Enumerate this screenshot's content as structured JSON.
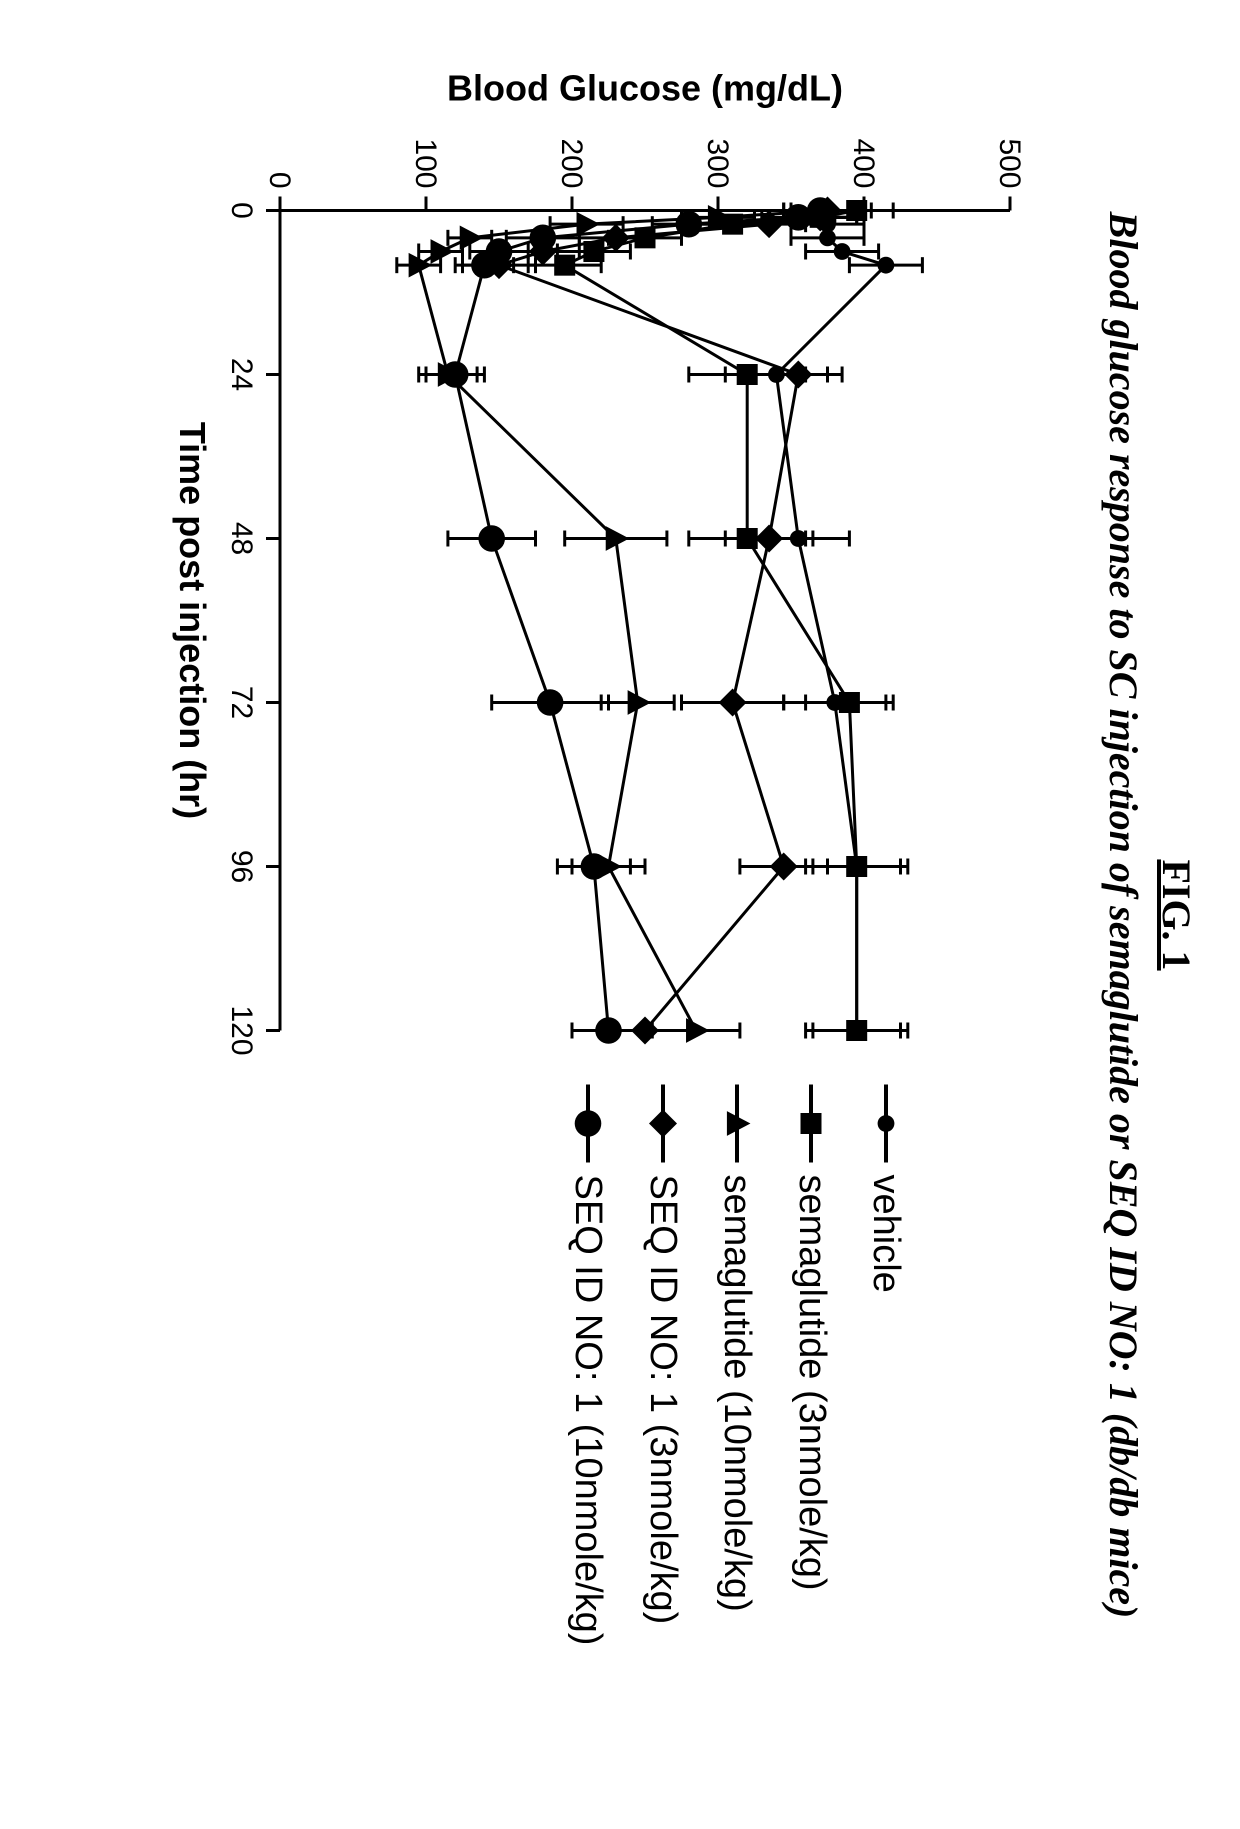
{
  "figure": {
    "label": "FIG. 1",
    "subtitle": "Blood glucose response to SC injection of semaglutide or SEQ ID NO: 1 (db/db mice)"
  },
  "chart": {
    "type": "line",
    "background_color": "#ffffff",
    "axis_color": "#000000",
    "axis_line_width": 3,
    "tick_font_size": 30,
    "label_font_size": 36,
    "xlabel": "Time post injection (hr)",
    "ylabel": "Blood Glucose (mg/dL)",
    "xlim": [
      0,
      120
    ],
    "ylim": [
      0,
      500
    ],
    "xticks": [
      0,
      24,
      48,
      72,
      96,
      120
    ],
    "yticks": [
      0,
      100,
      200,
      300,
      400,
      500
    ],
    "line_color": "#000000",
    "line_width": 3,
    "error_cap_width": 16,
    "marker_size": 14,
    "series": [
      {
        "id": "vehicle",
        "label": "vehicle",
        "marker": "circle_small_solid",
        "x": [
          0,
          1,
          2,
          4,
          6,
          8,
          24,
          48,
          72,
          96,
          120
        ],
        "y": [
          375,
          375,
          375,
          375,
          385,
          415,
          340,
          355,
          380,
          395,
          395
        ],
        "err": [
          30,
          25,
          25,
          25,
          25,
          25,
          35,
          35,
          35,
          35,
          35
        ]
      },
      {
        "id": "sema3",
        "label": "semaglutide (3nmole/kg)",
        "marker": "square_solid",
        "x": [
          0,
          1,
          2,
          4,
          6,
          8,
          24,
          48,
          72,
          96,
          120
        ],
        "y": [
          395,
          370,
          310,
          250,
          215,
          195,
          320,
          320,
          390,
          395,
          395
        ],
        "err": [
          25,
          25,
          25,
          25,
          25,
          25,
          40,
          40,
          30,
          30,
          30
        ]
      },
      {
        "id": "sema10",
        "label": "semaglutide (10nmole/kg)",
        "marker": "triangle_solid",
        "x": [
          0,
          1,
          2,
          4,
          6,
          8,
          24,
          48,
          72,
          96,
          120
        ],
        "y": [
          375,
          300,
          210,
          130,
          110,
          95,
          115,
          230,
          245,
          225,
          285
        ],
        "err": [
          25,
          25,
          25,
          15,
          15,
          15,
          20,
          35,
          25,
          25,
          30
        ]
      },
      {
        "id": "seq3",
        "label": "SEQ ID NO: 1  (3nmole/kg)",
        "marker": "diamond_solid",
        "x": [
          0,
          1,
          2,
          4,
          6,
          8,
          24,
          48,
          72,
          96,
          120
        ],
        "y": [
          375,
          370,
          335,
          230,
          180,
          150,
          355,
          335,
          310,
          345,
          250
        ],
        "err": [
          25,
          25,
          25,
          25,
          25,
          25,
          30,
          30,
          35,
          30,
          30
        ]
      },
      {
        "id": "seq10",
        "label": "SEQ ID NO: 1 (10nmole/kg)",
        "marker": "circle_large_solid",
        "x": [
          0,
          1,
          2,
          4,
          6,
          8,
          24,
          48,
          72,
          96,
          120
        ],
        "y": [
          370,
          355,
          280,
          180,
          150,
          140,
          120,
          145,
          185,
          215,
          225
        ],
        "err": [
          25,
          25,
          25,
          25,
          20,
          20,
          20,
          30,
          40,
          25,
          25
        ]
      }
    ]
  }
}
